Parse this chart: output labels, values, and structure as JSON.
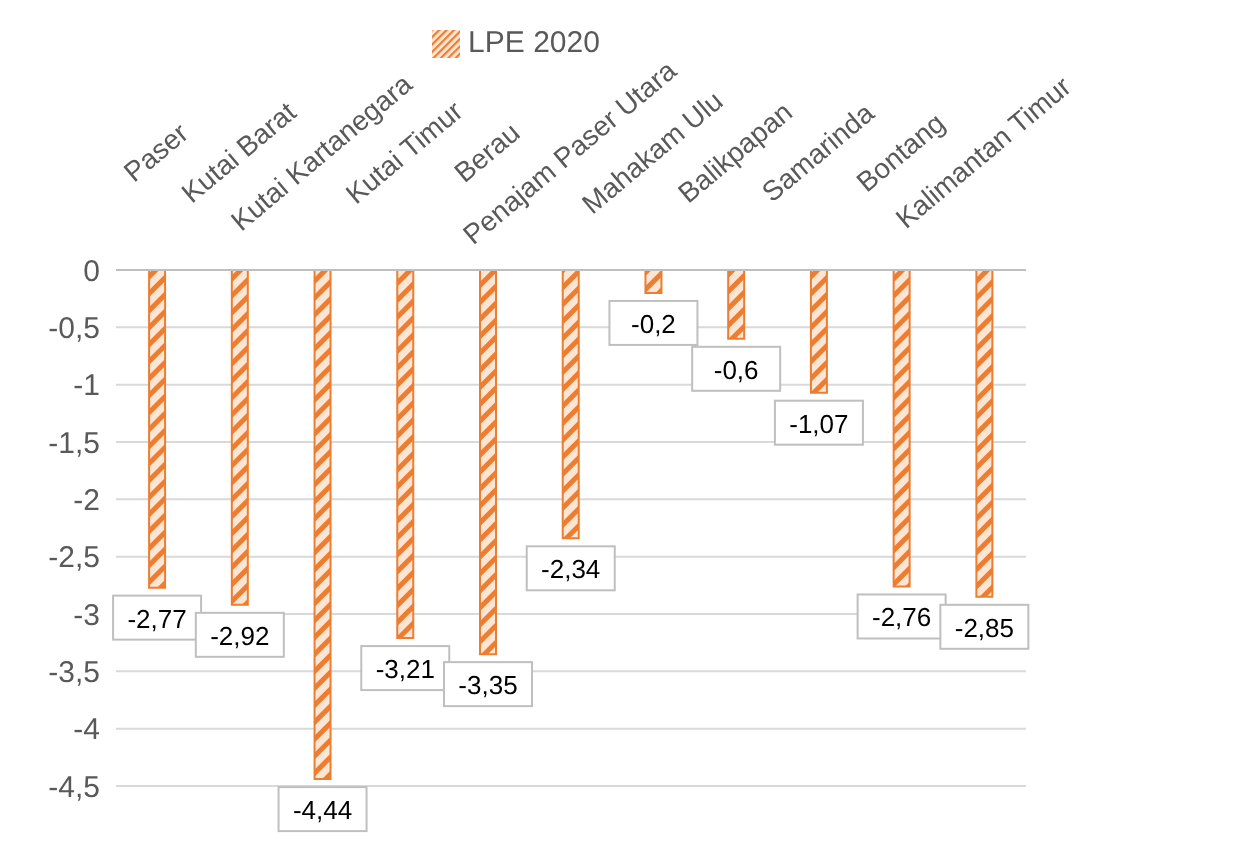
{
  "chart_data": {
    "type": "bar",
    "categories": [
      "Paser",
      "Kutai Barat",
      "Kutai Kartanegara",
      "Kutai Timur",
      "Berau",
      "Penajam Paser Utara",
      "Mahakam Ulu",
      "Balikpapan",
      "Samarinda",
      "Bontang",
      "Kalimantan Timur"
    ],
    "series": [
      {
        "name": "LPE 2020",
        "color": "#ed7d31",
        "values": [
          -2.77,
          -2.92,
          -4.44,
          -3.21,
          -3.35,
          -2.34,
          -0.2,
          -0.6,
          -1.07,
          -2.76,
          -2.85
        ],
        "value_labels": [
          "-2,77",
          "-2,92",
          "-4,44",
          "-3,21",
          "-3,35",
          "-2,34",
          "-0,2",
          "-0,6",
          "-1,07",
          "-2,76",
          "-2,85"
        ]
      }
    ],
    "ylim": [
      -4.5,
      0
    ],
    "yticks": [
      {
        "value": 0,
        "label": "0"
      },
      {
        "value": -0.5,
        "label": "-0,5"
      },
      {
        "value": -1,
        "label": "-1"
      },
      {
        "value": -1.5,
        "label": "-1,5"
      },
      {
        "value": -2,
        "label": "-2"
      },
      {
        "value": -2.5,
        "label": "-2,5"
      },
      {
        "value": -3,
        "label": "-3"
      },
      {
        "value": -3.5,
        "label": "-3,5"
      },
      {
        "value": -4,
        "label": "-4"
      },
      {
        "value": -4.5,
        "label": "-4,5"
      }
    ],
    "grid": "y",
    "legend": "top"
  }
}
